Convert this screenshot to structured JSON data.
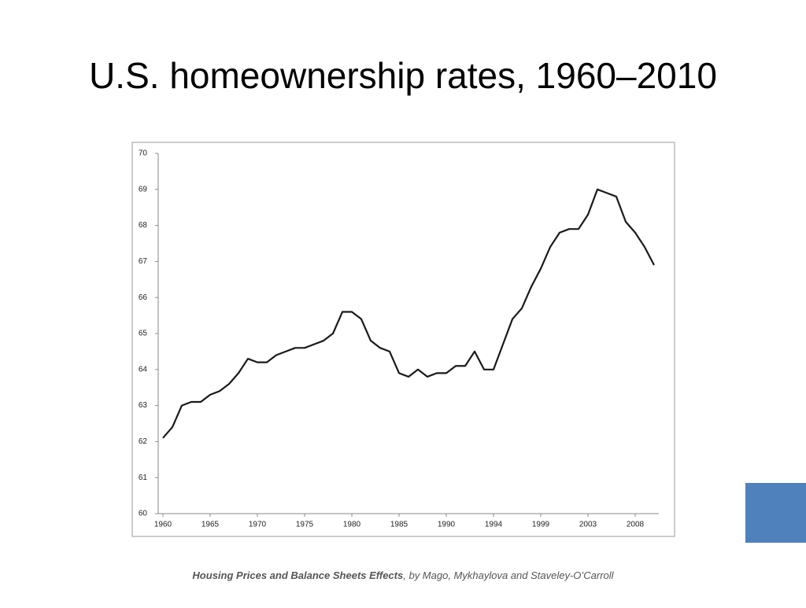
{
  "chart_data": {
    "type": "line",
    "title": "U.S. homeownership rates, 1960–2010",
    "categories": [
      "1960",
      null,
      null,
      null,
      null,
      "1965",
      null,
      null,
      null,
      null,
      "1970",
      null,
      null,
      null,
      null,
      "1975",
      null,
      null,
      null,
      null,
      "1980",
      null,
      null,
      null,
      null,
      "1985",
      null,
      null,
      null,
      null,
      "1990",
      null,
      null,
      null,
      null,
      "1994",
      null,
      null,
      null,
      null,
      "1999",
      null,
      null,
      null,
      null,
      "2003",
      null,
      null,
      null,
      null,
      "2008",
      null,
      null
    ],
    "values": [
      62.1,
      62.4,
      63.0,
      63.1,
      63.1,
      63.3,
      63.4,
      63.6,
      63.9,
      64.3,
      64.2,
      64.2,
      64.4,
      64.5,
      64.6,
      64.6,
      64.7,
      64.8,
      65.0,
      65.6,
      65.6,
      65.4,
      64.8,
      64.6,
      64.5,
      63.9,
      63.8,
      64.0,
      63.8,
      63.9,
      63.9,
      64.1,
      64.1,
      64.5,
      64.0,
      64.0,
      64.7,
      65.4,
      65.7,
      66.3,
      66.8,
      67.4,
      67.8,
      67.9,
      67.9,
      68.3,
      69.0,
      68.9,
      68.8,
      68.1,
      67.8,
      67.4,
      66.9
    ],
    "color": "#1a1a1a",
    "ylim": [
      60,
      70
    ],
    "yticks": [
      60,
      61,
      62,
      63,
      64,
      65,
      66,
      67,
      68,
      69,
      70
    ]
  },
  "caption": {
    "title": "Housing Prices and Balance Sheets Effects",
    "byline": ", by Mago, Mykhaylova and Staveley-O’Carroll"
  }
}
